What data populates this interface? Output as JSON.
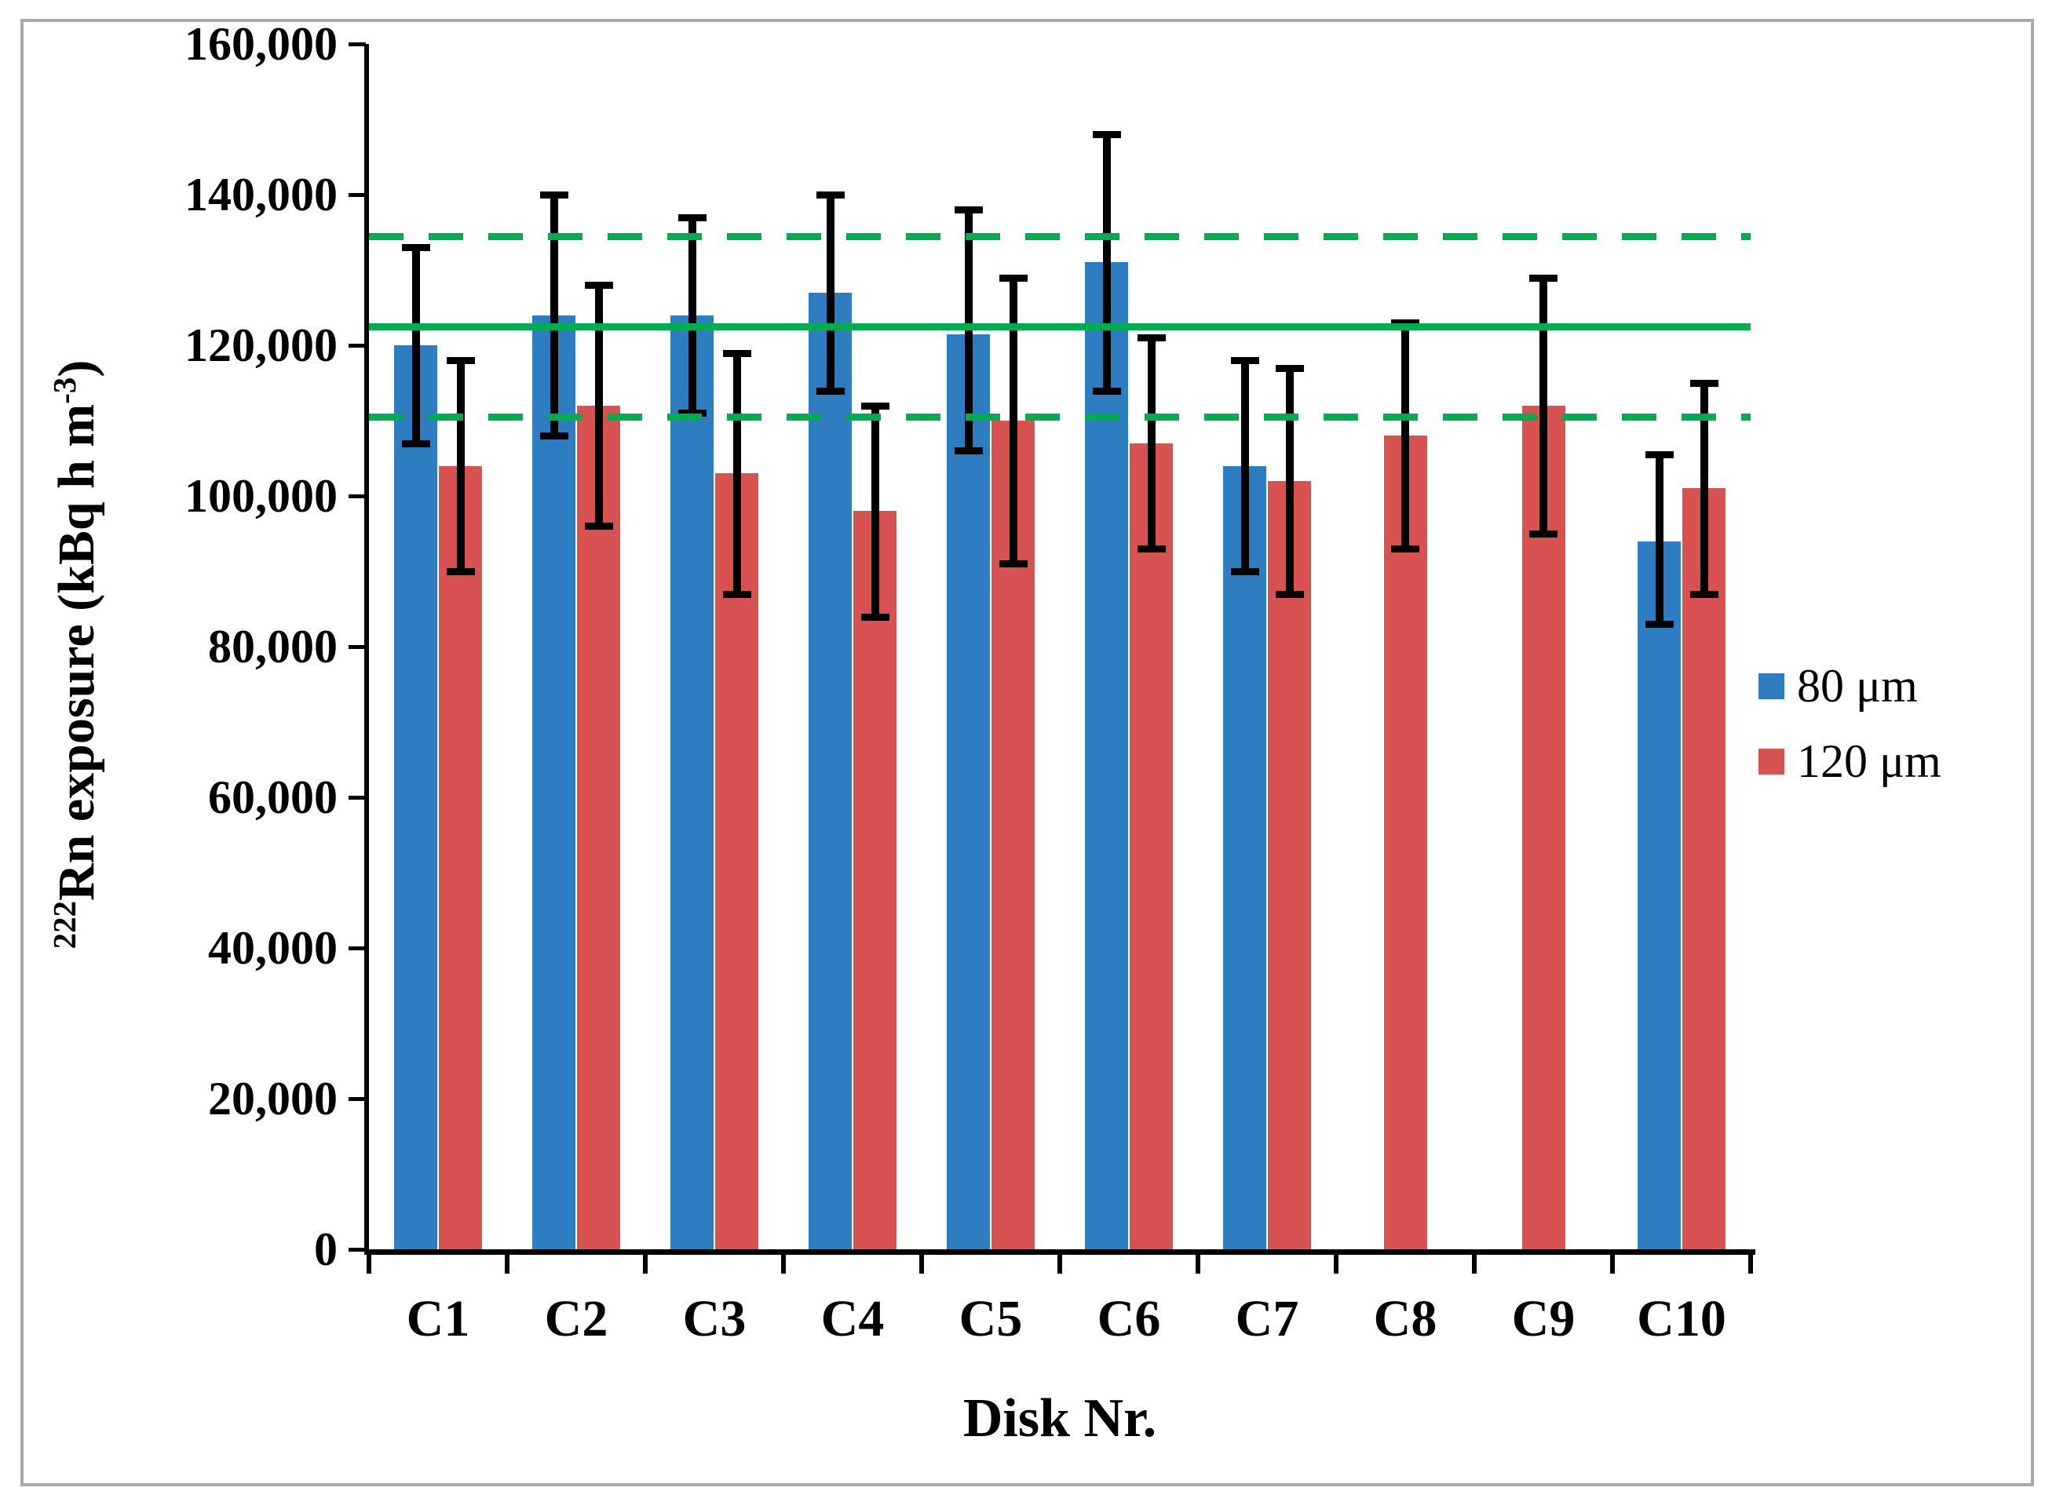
{
  "chart_data": {
    "type": "bar",
    "title": "",
    "xlabel": "Disk Nr.",
    "ylabel": "222Rn exposure (kBq h m-3)",
    "ylabel_parts": {
      "sup_prefix": "222",
      "main": "Rn exposure (kBq h m",
      "sup_suffix": "-3",
      "tail": ")"
    },
    "categories": [
      "C1",
      "C2",
      "C3",
      "C4",
      "C5",
      "C6",
      "C7",
      "C8",
      "C9",
      "C10"
    ],
    "y_axis": {
      "min": 0,
      "max": 160000,
      "tick_step": 20000,
      "tick_values": [
        0,
        20000,
        40000,
        60000,
        80000,
        100000,
        120000,
        140000,
        160000
      ],
      "tick_labels": [
        "0",
        "20,000",
        "40,000",
        "60,000",
        "80,000",
        "100,000",
        "120,000",
        "140,000",
        "160,000"
      ],
      "grid": false
    },
    "series": [
      {
        "name": "80 μm",
        "color": "#2e7dc0",
        "values": [
          120000,
          124000,
          124000,
          127000,
          121500,
          131000,
          104000,
          null,
          null,
          94000
        ],
        "err_low": [
          107000,
          108000,
          111000,
          114000,
          106000,
          114000,
          90000,
          null,
          null,
          83000
        ],
        "err_high": [
          133000,
          140000,
          137000,
          140000,
          138000,
          148000,
          118000,
          null,
          null,
          105500
        ]
      },
      {
        "name": "120 μm",
        "color": "#d95252",
        "values": [
          104000,
          112000,
          103000,
          98000,
          110000,
          107000,
          102000,
          108000,
          112000,
          101000
        ],
        "err_low": [
          90000,
          96000,
          87000,
          84000,
          91000,
          93000,
          87000,
          93000,
          95000,
          87000
        ],
        "err_high": [
          118000,
          128000,
          119000,
          112000,
          129000,
          121000,
          117000,
          123000,
          129000,
          115000
        ]
      }
    ],
    "reference_lines": [
      {
        "id": "mean-plus-sd",
        "style": "dashed",
        "value": 134500,
        "color": "#00ae50"
      },
      {
        "id": "mean",
        "style": "solid",
        "value": 122500,
        "color": "#00ae50"
      },
      {
        "id": "mean-minus-sd",
        "style": "dashed",
        "value": 110500,
        "color": "#00ae50"
      }
    ],
    "error_bar_color": "#000000",
    "legend": {
      "position": "right",
      "items": [
        "80 μm",
        "120 μm"
      ]
    }
  }
}
